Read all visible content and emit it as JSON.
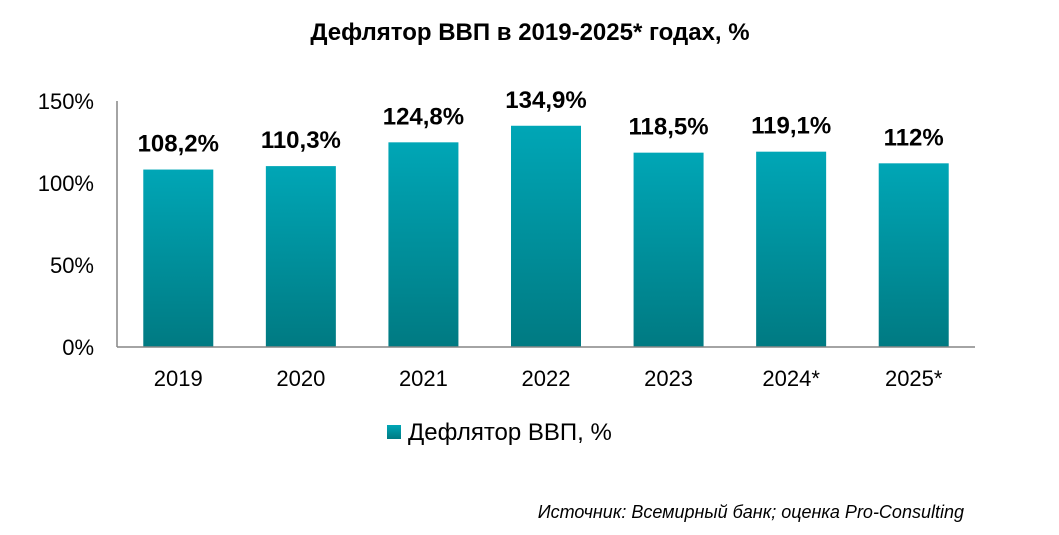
{
  "chart_data": {
    "type": "bar",
    "title": "Дефлятор ВВП в 2019-2025* годах, %",
    "categories": [
      "2019",
      "2020",
      "2021",
      "2022",
      "2023",
      "2024*",
      "2025*"
    ],
    "series": [
      {
        "name": "Дефлятор ВВП, %",
        "values": [
          108.2,
          110.3,
          124.8,
          134.9,
          118.5,
          119.1,
          112
        ],
        "data_labels": [
          "108,2%",
          "110,3%",
          "124,8%",
          "134,9%",
          "118,5%",
          "119,1%",
          "112%"
        ]
      }
    ],
    "ylim": [
      0,
      150
    ],
    "y_ticks": [
      0,
      50,
      100,
      150
    ],
    "y_tick_labels": [
      "0%",
      "50%",
      "100%",
      "150%"
    ],
    "xlabel": "",
    "ylabel": "",
    "grid": false,
    "legend_position": "bottom",
    "bar_color_top": "#00a6b6",
    "bar_color_bottom": "#007a82"
  },
  "source": "Источник: Всемирный банк; оценка Pro-Consulting"
}
